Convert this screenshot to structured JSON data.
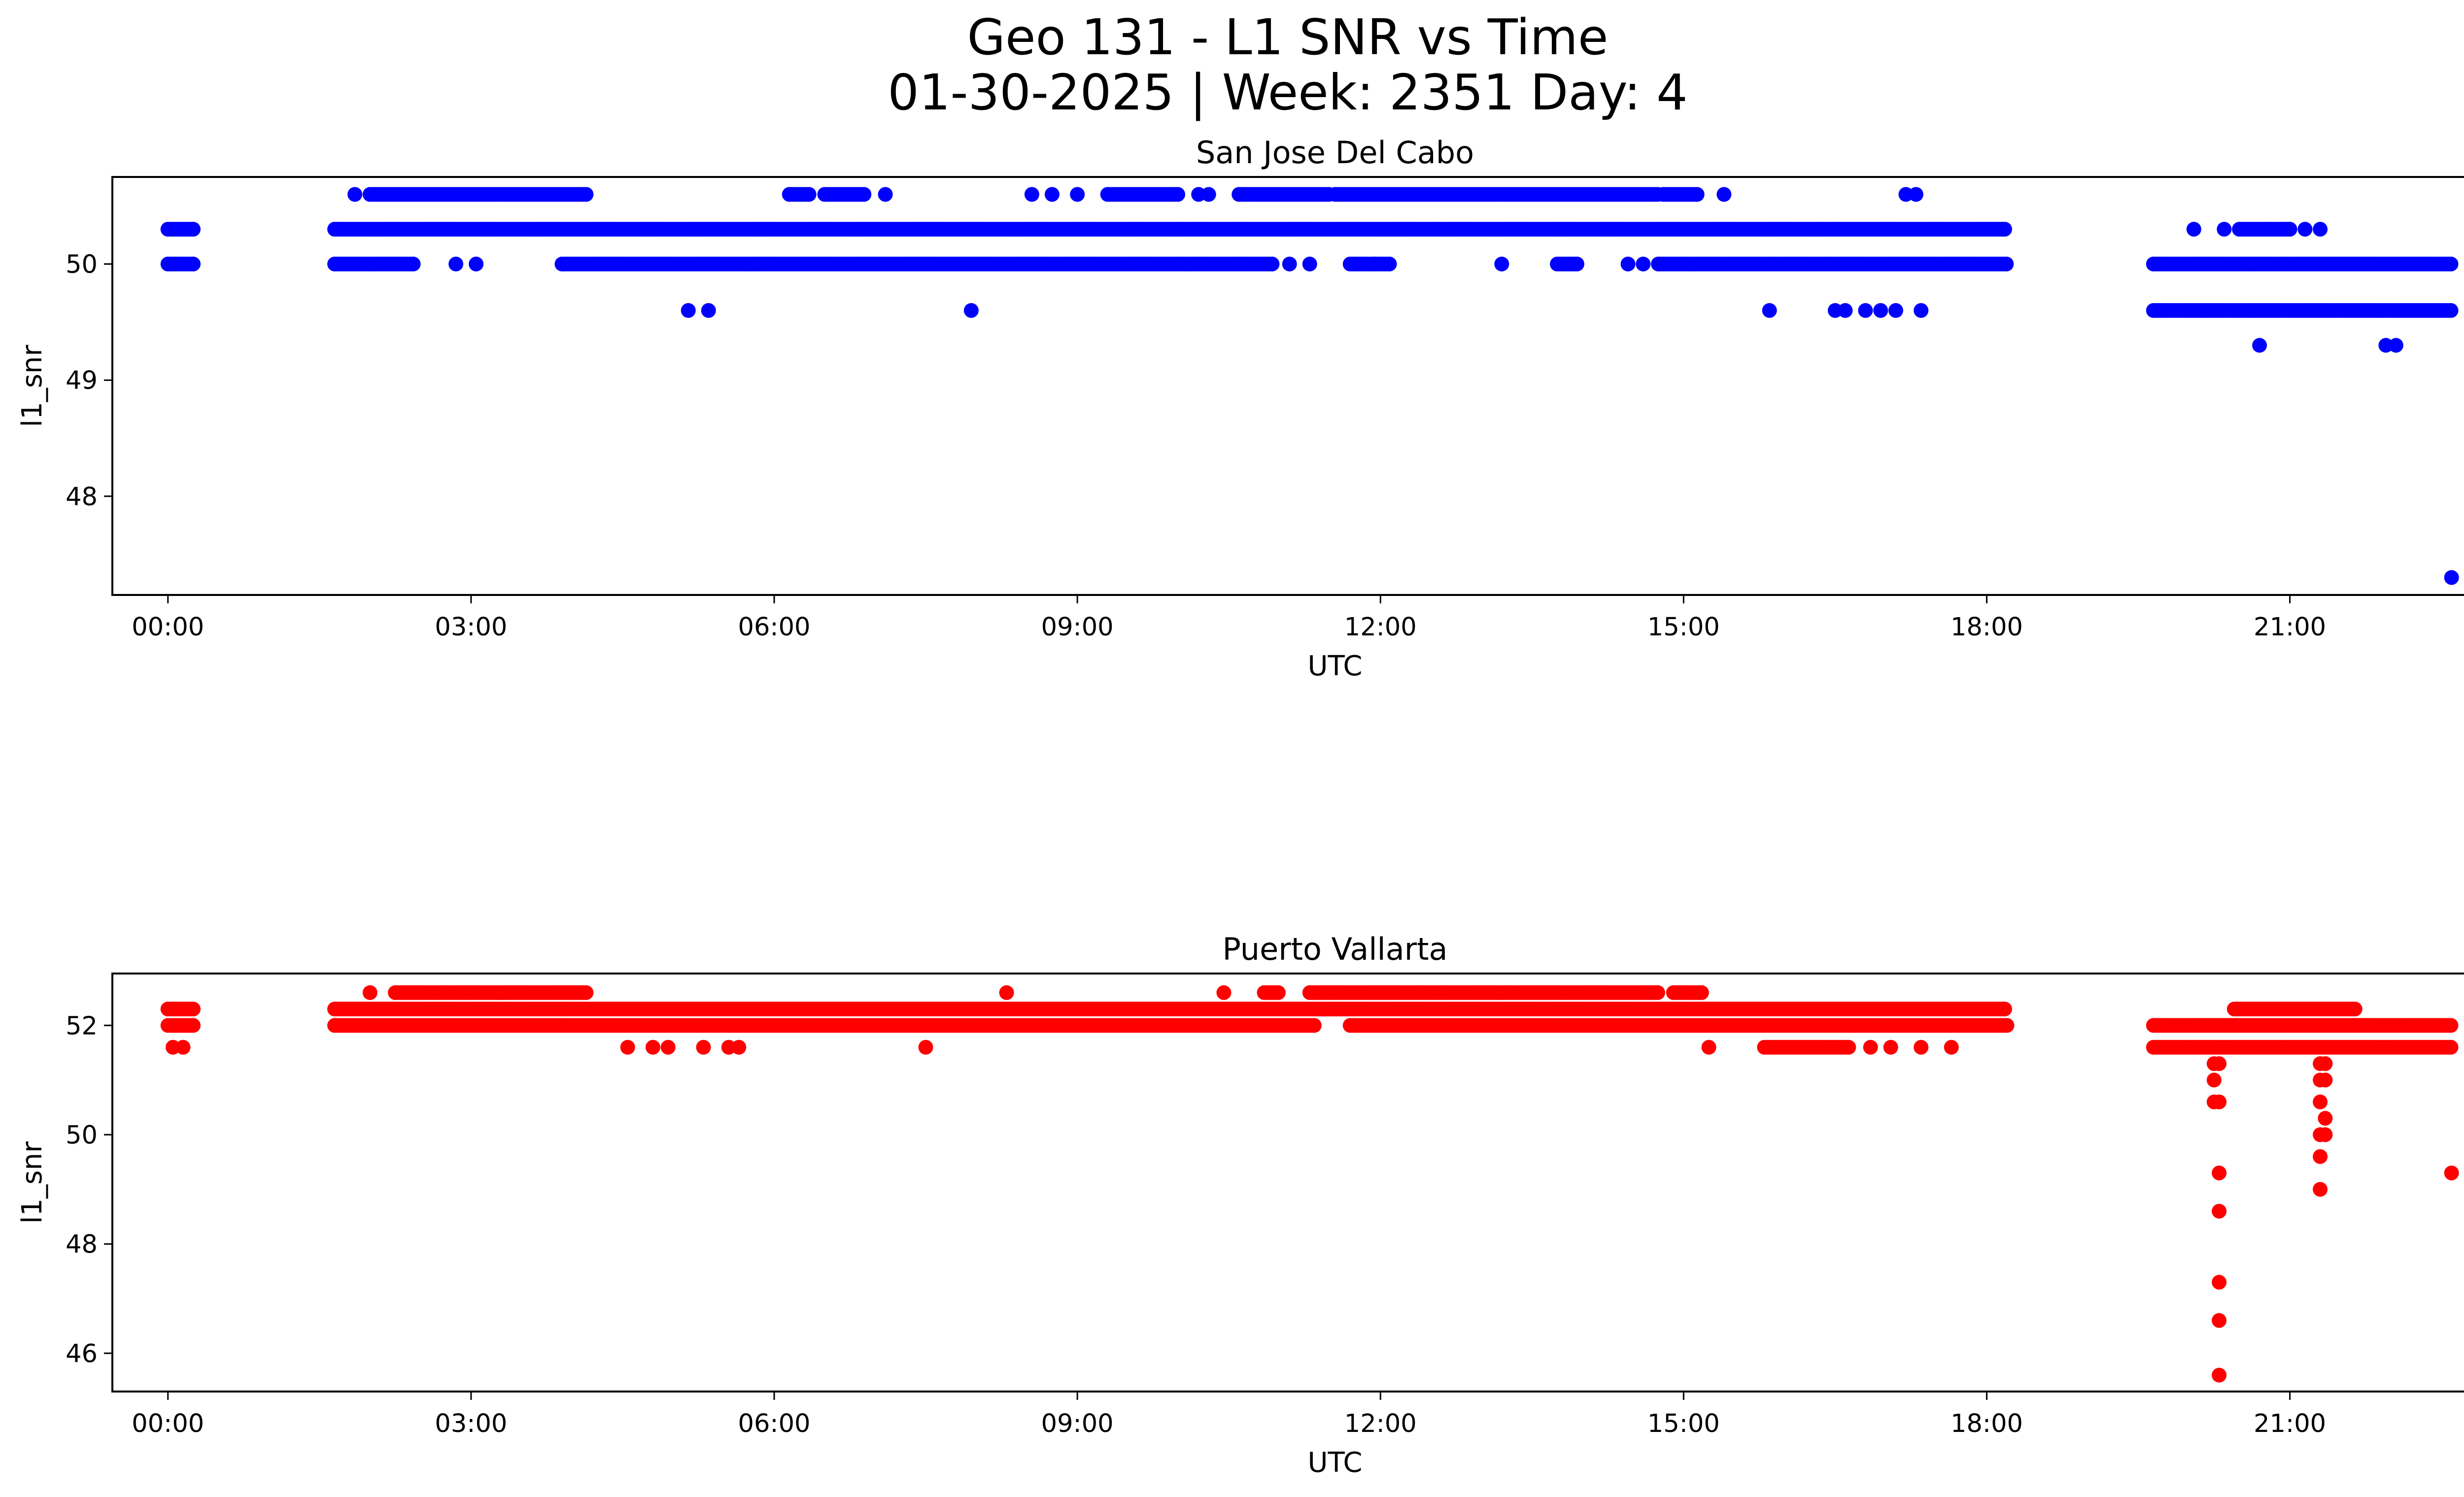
{
  "figure": {
    "title_line1": "Geo 131 - L1 SNR vs Time",
    "title_line2": "01-30-2025 | Week: 2351 Day: 4"
  },
  "chart_data": [
    {
      "type": "scatter",
      "title": "San Jose Del Cabo",
      "xlabel": "UTC",
      "ylabel": "l1_snr",
      "color": "#0000ff",
      "xlim": [
        -0.55,
        23.65
      ],
      "ylim": [
        47.15,
        50.75
      ],
      "xticks": [
        {
          "label": "00:00",
          "value": 0
        },
        {
          "label": "03:00",
          "value": 3
        },
        {
          "label": "06:00",
          "value": 6
        },
        {
          "label": "09:00",
          "value": 9
        },
        {
          "label": "12:00",
          "value": 12
        },
        {
          "label": "15:00",
          "value": 15
        },
        {
          "label": "18:00",
          "value": 18
        },
        {
          "label": "21:00",
          "value": 21
        }
      ],
      "yticks": [
        {
          "label": "48",
          "value": 48
        },
        {
          "label": "49",
          "value": 49
        },
        {
          "label": "50",
          "value": 50
        }
      ],
      "runs": [
        {
          "y": 50.3,
          "spans": [
            [
              0.0,
              0.25
            ],
            [
              1.65,
              18.2
            ]
          ]
        },
        {
          "y": 50.0,
          "spans": [
            [
              0.0,
              0.25
            ],
            [
              1.65,
              2.45
            ],
            [
              3.9,
              10.95
            ],
            [
              11.7,
              12.1
            ],
            [
              13.75,
              13.95
            ],
            [
              14.75,
              18.2
            ],
            [
              19.65,
              22.6
            ]
          ]
        },
        {
          "y": 50.6,
          "spans": [
            [
              2.0,
              4.15
            ],
            [
              6.15,
              6.35
            ],
            [
              6.5,
              6.9
            ],
            [
              9.3,
              10.0
            ],
            [
              10.6,
              11.5
            ],
            [
              11.55,
              14.75
            ],
            [
              14.8,
              15.15
            ]
          ]
        },
        {
          "y": 49.6,
          "spans": [
            [
              19.65,
              22.6
            ]
          ]
        },
        {
          "y": 50.3,
          "spans": [
            [
              20.5,
              21.0
            ]
          ]
        }
      ],
      "points": [
        [
          1.85,
          50.6
        ],
        [
          7.1,
          50.6
        ],
        [
          8.55,
          50.6
        ],
        [
          8.75,
          50.6
        ],
        [
          9.0,
          50.6
        ],
        [
          10.2,
          50.6
        ],
        [
          10.3,
          50.6
        ],
        [
          15.4,
          50.6
        ],
        [
          17.2,
          50.6
        ],
        [
          17.3,
          50.6
        ],
        [
          2.85,
          50.0
        ],
        [
          3.05,
          50.0
        ],
        [
          11.1,
          50.0
        ],
        [
          11.3,
          50.0
        ],
        [
          11.95,
          50.0
        ],
        [
          13.2,
          50.0
        ],
        [
          14.45,
          50.0
        ],
        [
          14.6,
          50.0
        ],
        [
          5.15,
          49.6
        ],
        [
          5.35,
          49.6
        ],
        [
          7.95,
          49.6
        ],
        [
          15.85,
          49.6
        ],
        [
          16.5,
          49.6
        ],
        [
          16.6,
          49.6
        ],
        [
          16.8,
          49.6
        ],
        [
          16.95,
          49.6
        ],
        [
          17.1,
          49.6
        ],
        [
          17.35,
          49.6
        ],
        [
          20.05,
          50.3
        ],
        [
          20.35,
          50.3
        ],
        [
          21.15,
          50.3
        ],
        [
          21.3,
          50.3
        ],
        [
          20.7,
          49.3
        ],
        [
          21.95,
          49.3
        ],
        [
          22.05,
          49.3
        ],
        [
          22.6,
          47.3
        ]
      ]
    },
    {
      "type": "scatter",
      "title": "Puerto Vallarta",
      "xlabel": "UTC",
      "ylabel": "l1_snr",
      "color": "#ff0000",
      "xlim": [
        -0.55,
        23.65
      ],
      "ylim": [
        45.3,
        52.95
      ],
      "xticks": [
        {
          "label": "00:00",
          "value": 0
        },
        {
          "label": "03:00",
          "value": 3
        },
        {
          "label": "06:00",
          "value": 6
        },
        {
          "label": "09:00",
          "value": 9
        },
        {
          "label": "12:00",
          "value": 12
        },
        {
          "label": "15:00",
          "value": 15
        },
        {
          "label": "18:00",
          "value": 18
        },
        {
          "label": "21:00",
          "value": 21
        }
      ],
      "yticks": [
        {
          "label": "46",
          "value": 46
        },
        {
          "label": "48",
          "value": 48
        },
        {
          "label": "50",
          "value": 50
        },
        {
          "label": "52",
          "value": 52
        }
      ],
      "runs": [
        {
          "y": 52.3,
          "spans": [
            [
              0.0,
              0.25
            ],
            [
              1.65,
              18.2
            ],
            [
              20.45,
              21.65
            ]
          ]
        },
        {
          "y": 52.0,
          "spans": [
            [
              0.0,
              0.25
            ],
            [
              1.65,
              11.35
            ],
            [
              11.7,
              18.2
            ],
            [
              19.65,
              22.6
            ]
          ]
        },
        {
          "y": 52.6,
          "spans": [
            [
              2.25,
              4.15
            ],
            [
              10.85,
              11.0
            ],
            [
              11.3,
              14.75
            ],
            [
              14.9,
              15.2
            ]
          ]
        },
        {
          "y": 51.6,
          "spans": [
            [
              15.8,
              16.65
            ],
            [
              19.65,
              22.6
            ]
          ]
        }
      ],
      "points": [
        [
          2.0,
          52.6
        ],
        [
          8.3,
          52.6
        ],
        [
          10.45,
          52.6
        ],
        [
          0.05,
          51.6
        ],
        [
          0.15,
          51.6
        ],
        [
          4.55,
          51.6
        ],
        [
          4.8,
          51.6
        ],
        [
          4.95,
          51.6
        ],
        [
          5.3,
          51.6
        ],
        [
          5.55,
          51.6
        ],
        [
          5.65,
          51.6
        ],
        [
          7.5,
          51.6
        ],
        [
          15.25,
          51.6
        ],
        [
          16.85,
          51.6
        ],
        [
          17.05,
          51.6
        ],
        [
          17.35,
          51.6
        ],
        [
          17.65,
          51.6
        ],
        [
          20.25,
          51.3
        ],
        [
          20.3,
          51.3
        ],
        [
          20.25,
          51.0
        ],
        [
          20.25,
          50.6
        ],
        [
          20.3,
          50.6
        ],
        [
          20.3,
          49.3
        ],
        [
          20.3,
          48.6
        ],
        [
          20.3,
          47.3
        ],
        [
          20.3,
          46.6
        ],
        [
          20.3,
          45.6
        ],
        [
          21.3,
          51.3
        ],
        [
          21.35,
          51.3
        ],
        [
          21.3,
          51.0
        ],
        [
          21.35,
          51.0
        ],
        [
          21.3,
          50.6
        ],
        [
          21.35,
          50.3
        ],
        [
          21.3,
          50.0
        ],
        [
          21.35,
          50.0
        ],
        [
          21.3,
          49.6
        ],
        [
          21.3,
          49.0
        ],
        [
          22.6,
          49.3
        ]
      ]
    }
  ]
}
